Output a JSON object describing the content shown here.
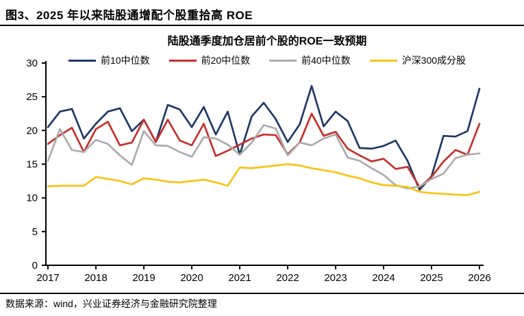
{
  "header": {
    "title": "图3、2025 年以来陆股通增配个股重拾高 ROE"
  },
  "footer": {
    "source_text": "数据来源：wind，兴业证券经济与金融研究院整理"
  },
  "colors": {
    "axis": "#000000",
    "background": "#FFFFFF",
    "text": "#000000"
  },
  "chart_data": {
    "type": "line",
    "title": "陆股通季度加仓居前个股的ROE一致预期",
    "xlabel": "",
    "ylabel": "",
    "x_start_year": 2017,
    "points_per_year": 4,
    "x_tick_labels": [
      "2017",
      "2018",
      "2019",
      "2020",
      "2021",
      "2022",
      "2023",
      "2024",
      "2025",
      "2026"
    ],
    "y_ticks": [
      0,
      5,
      10,
      15,
      20,
      25,
      30
    ],
    "ylim": [
      0,
      30
    ],
    "grid": false,
    "legend_position": "top",
    "series": [
      {
        "name": "前10中位数",
        "color": "#1E3766",
        "values": [
          20.5,
          22.8,
          23.2,
          18.8,
          21.0,
          22.8,
          23.3,
          19.9,
          21.6,
          18.3,
          23.8,
          23.1,
          20.5,
          23.5,
          19.4,
          22.8,
          16.4,
          22.1,
          24.1,
          21.7,
          18.3,
          20.9,
          26.6,
          20.6,
          22.8,
          21.4,
          17.4,
          17.3,
          17.7,
          18.5,
          15.5,
          11.2,
          13.2,
          19.2,
          19.1,
          19.9,
          26.2
        ]
      },
      {
        "name": "前20中位数",
        "color": "#C5302A",
        "values": [
          18.0,
          19.3,
          20.4,
          16.8,
          20.2,
          21.3,
          17.8,
          18.2,
          21.6,
          18.3,
          21.6,
          18.5,
          17.8,
          21.0,
          16.2,
          17.0,
          17.9,
          18.8,
          19.4,
          19.3,
          16.5,
          18.2,
          22.5,
          19.2,
          19.8,
          17.3,
          16.3,
          15.4,
          15.8,
          14.3,
          14.6,
          11.6,
          13.1,
          15.4,
          17.1,
          16.4,
          21.0
        ]
      },
      {
        "name": "前40中位数",
        "color": "#ABABAB",
        "values": [
          15.5,
          20.2,
          17.1,
          16.8,
          18.6,
          18.0,
          16.3,
          14.9,
          19.9,
          17.8,
          17.7,
          16.8,
          16.1,
          19.0,
          18.8,
          17.9,
          16.4,
          18.2,
          20.8,
          20.3,
          16.3,
          18.2,
          17.8,
          18.8,
          19.4,
          16.0,
          15.5,
          14.4,
          13.4,
          11.9,
          11.4,
          11.7,
          12.8,
          13.6,
          15.9,
          16.4,
          16.6
        ]
      },
      {
        "name": "沪深300成分股",
        "color": "#F9C216",
        "values": [
          11.7,
          11.8,
          11.8,
          11.8,
          13.1,
          12.8,
          12.5,
          12.0,
          12.9,
          12.7,
          12.4,
          12.3,
          12.5,
          12.7,
          12.3,
          11.8,
          14.5,
          14.4,
          14.6,
          14.8,
          15.0,
          14.8,
          14.4,
          14.1,
          13.8,
          13.3,
          12.9,
          12.3,
          11.9,
          11.8,
          11.6,
          10.9,
          10.7,
          10.6,
          10.5,
          10.4,
          10.9
        ]
      }
    ]
  }
}
